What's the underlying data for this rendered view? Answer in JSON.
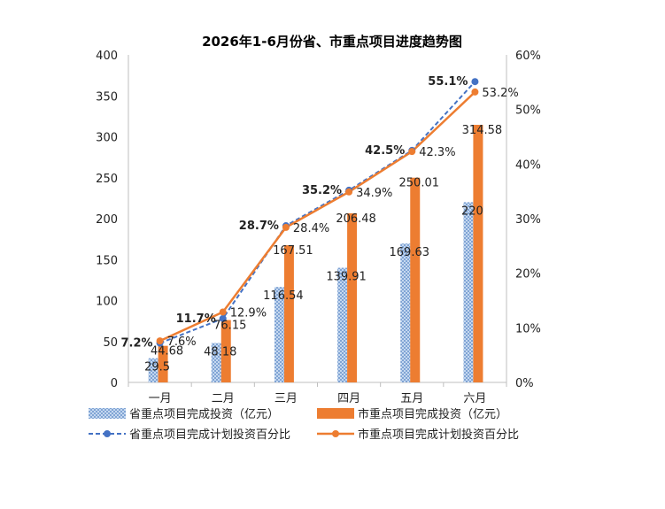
{
  "chart_data": {
    "type": "bar+line",
    "title": "2026年1-6月份省、市重点项目进度趋势图",
    "categories": [
      "一月",
      "二月",
      "三月",
      "四月",
      "五月",
      "六月"
    ],
    "y_left": {
      "min": 0,
      "max": 400,
      "ticks": [
        "0",
        "50",
        "100",
        "150",
        "200",
        "250",
        "300",
        "350",
        "400"
      ]
    },
    "y_right": {
      "min": 0,
      "max": 60,
      "ticks": [
        "0%",
        "10%",
        "20%",
        "30%",
        "40%",
        "50%",
        "60%"
      ]
    },
    "bar_series": [
      {
        "name": "省重点项目完成投资（亿元）",
        "color": "#7fa6d8",
        "values": [
          29.5,
          48.18,
          116.54,
          139.91,
          169.63,
          220
        ],
        "labels": [
          "29.5",
          "48.18",
          "116.54",
          "139.91",
          "169.63",
          "220"
        ]
      },
      {
        "name": "市重点项目完成投资（亿元）",
        "color": "#ed7d31",
        "values": [
          44.68,
          76.15,
          167.51,
          206.48,
          250.01,
          314.58
        ],
        "labels": [
          "44.68",
          "76.15",
          "167.51",
          "206.48",
          "250.01",
          "314.58"
        ]
      }
    ],
    "line_series": [
      {
        "name": "省重点项目完成计划投资百分比",
        "color": "#4472c4",
        "dashed": true,
        "values": [
          7.2,
          11.7,
          28.7,
          35.2,
          42.5,
          55.1
        ],
        "labels": [
          "7.2%",
          "11.7%",
          "28.7%",
          "35.2%",
          "42.5%",
          "55.1%"
        ]
      },
      {
        "name": "市重点项目完成计划投资百分比",
        "color": "#ed7d31",
        "dashed": false,
        "values": [
          7.6,
          12.9,
          28.4,
          34.9,
          42.3,
          53.2
        ],
        "labels": [
          "7.6%",
          "12.9%",
          "28.4%",
          "34.9%",
          "42.3%",
          "53.2%"
        ]
      }
    ],
    "grid": false,
    "legend_position": "bottom"
  }
}
